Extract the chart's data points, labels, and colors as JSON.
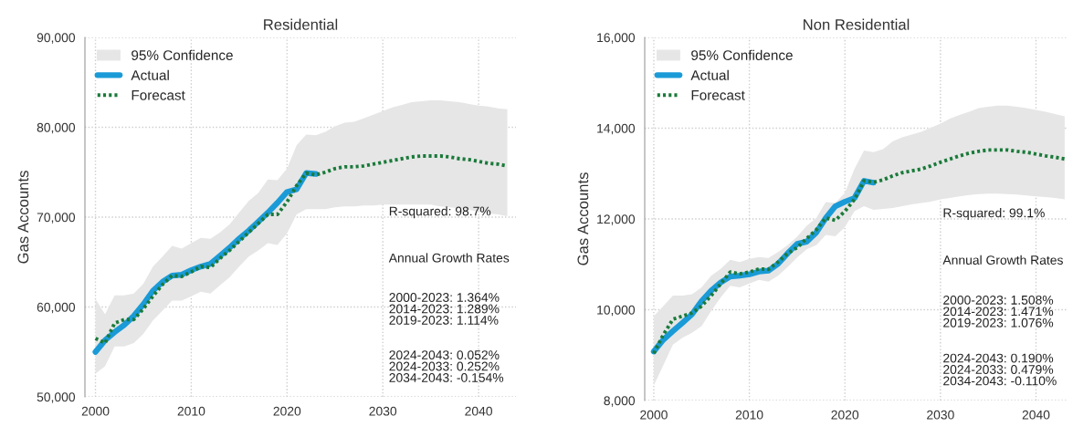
{
  "chart_data": [
    {
      "type": "line",
      "title": "Residential",
      "ylabel": "Gas Accounts",
      "xlim": [
        1998.9,
        2043.9
      ],
      "ylim": [
        50000,
        90000
      ],
      "xticks": [
        2000,
        2010,
        2020,
        2030,
        2040
      ],
      "yticks": [
        {
          "value": 50000,
          "label": "50,000"
        },
        {
          "value": 60000,
          "label": "60,000"
        },
        {
          "value": 70000,
          "label": "70,000"
        },
        {
          "value": 80000,
          "label": "80,000"
        },
        {
          "value": 90000,
          "label": "90,000"
        }
      ],
      "grid": true,
      "legend": "top left",
      "series": [
        {
          "name": "95% Confidence",
          "type": "area",
          "color": "#e6e6e6"
        },
        {
          "name": "Actual",
          "color": "#1a9bd7",
          "line_style": "solid",
          "x": [
            2000,
            2001,
            2002,
            2003,
            2004,
            2005,
            2006,
            2007,
            2008,
            2009,
            2010,
            2011,
            2012,
            2013,
            2014,
            2015,
            2016,
            2017,
            2018,
            2019,
            2020,
            2021,
            2022,
            2023
          ],
          "values": [
            55000,
            56300,
            57200,
            58000,
            59000,
            60300,
            61800,
            62800,
            63500,
            63600,
            64100,
            64500,
            64800,
            65700,
            66600,
            67600,
            68500,
            69500,
            70500,
            71600,
            72800,
            73100,
            74900,
            74800
          ]
        },
        {
          "name": "Forecast",
          "color": "#1a7a3a",
          "line_style": "dotted",
          "x": [
            2000,
            2001,
            2002,
            2003,
            2004,
            2005,
            2006,
            2007,
            2008,
            2009,
            2010,
            2011,
            2012,
            2013,
            2014,
            2015,
            2016,
            2017,
            2018,
            2019,
            2020,
            2021,
            2022,
            2023,
            2024,
            2025,
            2026,
            2027,
            2028,
            2029,
            2030,
            2031,
            2032,
            2033,
            2034,
            2035,
            2036,
            2037,
            2038,
            2039,
            2040,
            2041,
            2042,
            2043
          ],
          "values": [
            56500,
            56000,
            58200,
            58600,
            58600,
            59800,
            61200,
            62500,
            63500,
            63400,
            63900,
            64500,
            64400,
            65400,
            66300,
            67300,
            68300,
            69300,
            70300,
            70300,
            71700,
            73500,
            74900,
            74700,
            75000,
            75400,
            75600,
            75600,
            75700,
            75900,
            76100,
            76300,
            76500,
            76700,
            76800,
            76800,
            76800,
            76700,
            76500,
            76400,
            76200,
            76000,
            75900,
            75700
          ],
          "upper": [
            60900,
            59200,
            61300,
            61300,
            61500,
            62600,
            64500,
            65600,
            66800,
            66500,
            67100,
            67700,
            67600,
            68300,
            69200,
            70500,
            71800,
            72700,
            74200,
            74100,
            75400,
            78000,
            79200,
            79100,
            79500,
            80100,
            80500,
            80600,
            81000,
            81400,
            81800,
            82200,
            82500,
            82800,
            82900,
            83000,
            83000,
            82900,
            82800,
            82600,
            82400,
            82300,
            82100,
            82000
          ],
          "lower": [
            52600,
            53400,
            55600,
            55600,
            56000,
            57000,
            58500,
            59600,
            60700,
            60700,
            61200,
            61700,
            61500,
            62400,
            63300,
            64500,
            65600,
            66300,
            67100,
            66900,
            68200,
            70300,
            70900,
            70900,
            70900,
            71100,
            71200,
            71200,
            71300,
            71300,
            71400,
            71400,
            71400,
            71400,
            71400,
            71400,
            71200,
            71100,
            71000,
            70800,
            70600,
            70400,
            70300,
            70100
          ]
        }
      ],
      "annotations": [
        "R-squared: 98.7%",
        "Annual Growth Rates",
        "2000-2023: 1.364%\n2014-2023: 1.289%\n2019-2023: 1.114%",
        "2024-2043: 0.052%\n2024-2033: 0.252%\n2034-2043: -0.154%"
      ]
    },
    {
      "type": "line",
      "title": "Non Residential",
      "ylabel": "Gas Accounts",
      "xlim": [
        1999.05,
        2043.3
      ],
      "ylim": [
        8000,
        16000
      ],
      "xticks": [
        2000,
        2010,
        2020,
        2030,
        2040
      ],
      "yticks": [
        {
          "value": 8000,
          "label": "8,000"
        },
        {
          "value": 10000,
          "label": "10,000"
        },
        {
          "value": 12000,
          "label": "12,000"
        },
        {
          "value": 14000,
          "label": "14,000"
        },
        {
          "value": 16000,
          "label": "16,000"
        }
      ],
      "grid": true,
      "legend": "top left",
      "series": [
        {
          "name": "95% Confidence",
          "type": "area",
          "color": "#e6e6e6"
        },
        {
          "name": "Actual",
          "color": "#1a9bd7",
          "line_style": "solid",
          "x": [
            2000,
            2001,
            2002,
            2003,
            2004,
            2005,
            2006,
            2007,
            2008,
            2009,
            2010,
            2011,
            2012,
            2013,
            2014,
            2015,
            2016,
            2017,
            2018,
            2019,
            2020,
            2021,
            2022,
            2023
          ],
          "values": [
            9080,
            9340,
            9530,
            9710,
            9900,
            10190,
            10420,
            10600,
            10730,
            10750,
            10780,
            10840,
            10860,
            11010,
            11240,
            11450,
            11500,
            11700,
            12020,
            12280,
            12380,
            12460,
            12840,
            12800
          ]
        },
        {
          "name": "Forecast",
          "color": "#1a7a3a",
          "line_style": "dotted",
          "x": [
            2000,
            2001,
            2002,
            2003,
            2004,
            2005,
            2006,
            2007,
            2008,
            2009,
            2010,
            2011,
            2012,
            2013,
            2014,
            2015,
            2016,
            2017,
            2018,
            2019,
            2020,
            2021,
            2022,
            2023,
            2024,
            2025,
            2026,
            2027,
            2028,
            2029,
            2030,
            2031,
            2032,
            2033,
            2034,
            2035,
            2036,
            2037,
            2038,
            2039,
            2040,
            2041,
            2042,
            2043
          ],
          "values": [
            9040,
            9450,
            9790,
            9860,
            9930,
            10080,
            10310,
            10570,
            10830,
            10790,
            10830,
            10900,
            10890,
            11050,
            11240,
            11370,
            11570,
            11760,
            12020,
            11970,
            12170,
            12430,
            12840,
            12810,
            12860,
            12950,
            13020,
            13060,
            13100,
            13170,
            13250,
            13320,
            13390,
            13450,
            13490,
            13520,
            13520,
            13520,
            13490,
            13470,
            13430,
            13390,
            13360,
            13320
          ],
          "upper": [
            9860,
            10080,
            10310,
            10310,
            10340,
            10490,
            10750,
            10900,
            11100,
            11050,
            11120,
            11160,
            11140,
            11270,
            11420,
            11610,
            11850,
            12020,
            12370,
            12350,
            12580,
            13100,
            13510,
            13470,
            13540,
            13710,
            13800,
            13860,
            13920,
            14010,
            14100,
            14210,
            14290,
            14360,
            14440,
            14470,
            14500,
            14500,
            14470,
            14440,
            14400,
            14360,
            14310,
            14260
          ],
          "lower": [
            8330,
            8780,
            9230,
            9380,
            9490,
            9640,
            9970,
            10270,
            10530,
            10490,
            10580,
            10660,
            10620,
            10750,
            10940,
            11150,
            11330,
            11420,
            11650,
            11620,
            11820,
            12170,
            12280,
            12200,
            12220,
            12240,
            12280,
            12320,
            12350,
            12380,
            12430,
            12460,
            12500,
            12530,
            12550,
            12560,
            12560,
            12550,
            12540,
            12520,
            12500,
            12480,
            12460,
            12430
          ]
        }
      ],
      "annotations": [
        "R-squared: 99.1%",
        "Annual Growth Rates",
        "2000-2023: 1.508%\n2014-2023: 1.471%\n2019-2023: 1.076%",
        "2024-2043: 0.190%\n2024-2033: 0.479%\n2034-2043: -0.110%"
      ]
    }
  ]
}
